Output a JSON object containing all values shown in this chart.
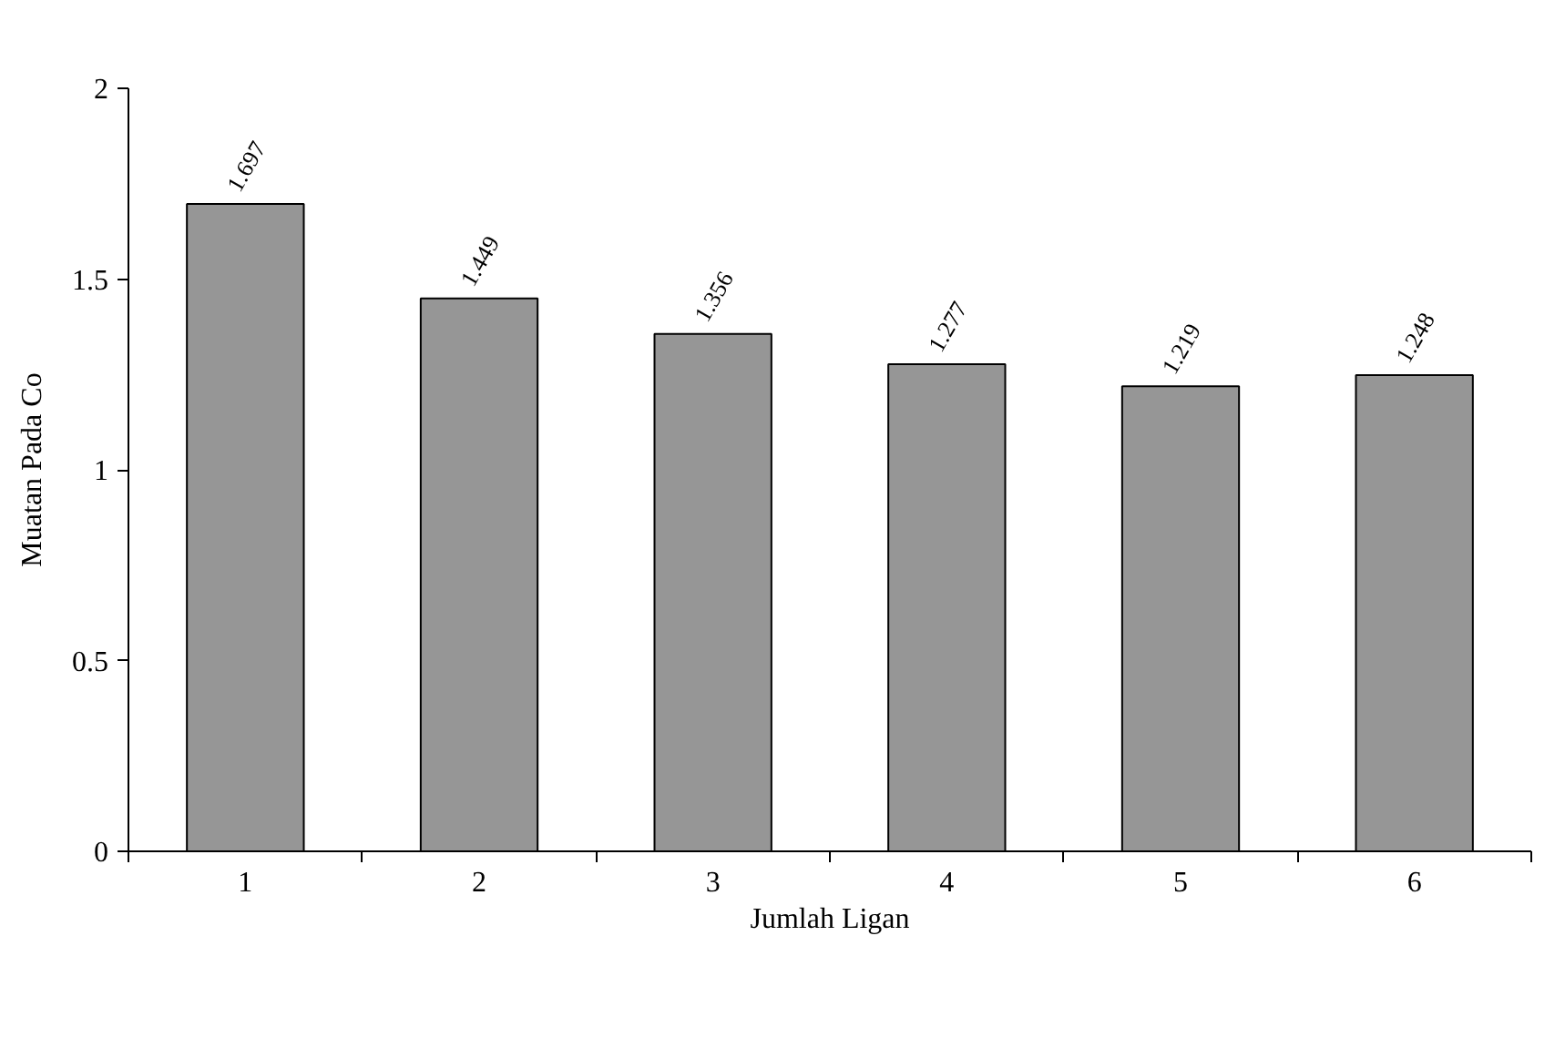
{
  "chart_data": {
    "type": "bar",
    "xlabel": "Jumlah Ligan",
    "ylabel": "Muatan Pada Co",
    "categories": [
      "1",
      "2",
      "3",
      "4",
      "5",
      "6"
    ],
    "values": [
      1.697,
      1.449,
      1.356,
      1.277,
      1.219,
      1.248
    ],
    "color": "#969696",
    "ylim": [
      0,
      2
    ],
    "yticks": [
      0,
      0.5,
      1,
      1.5,
      2
    ],
    "grid": false,
    "data_labels": true
  }
}
